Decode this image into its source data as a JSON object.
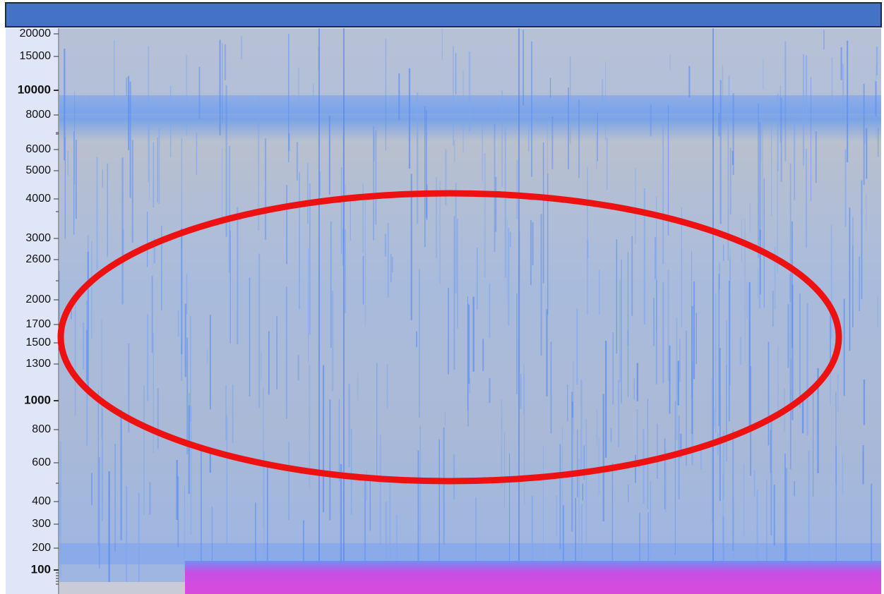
{
  "axis": {
    "tick_labels": [
      "20000",
      "15000",
      "10000",
      "8000",
      "6000",
      "5000",
      "4000",
      "3000",
      "2600",
      "2000",
      "1700",
      "1500",
      "1300",
      "1000",
      "800",
      "600",
      "400",
      "300",
      "200",
      "100"
    ]
  }
}
